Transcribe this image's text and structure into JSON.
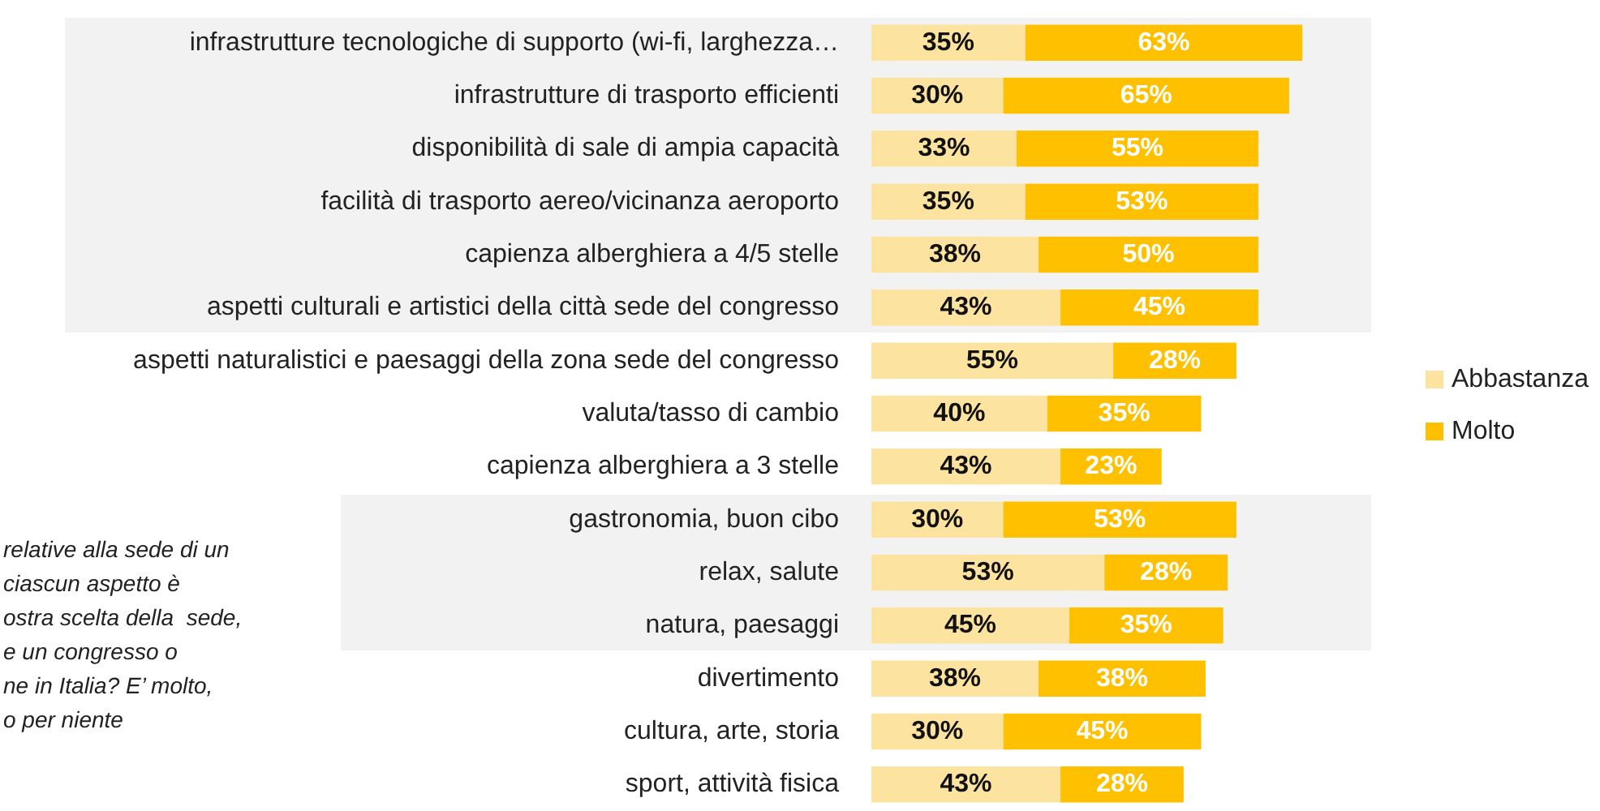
{
  "chart_data": {
    "type": "bar",
    "orientation": "horizontal",
    "stacked": true,
    "tick_labels": "y",
    "categories": [
      "infrastrutture tecnologiche di supporto (wi-fi, larghezza…",
      "infrastrutture di trasporto efficienti",
      "disponibilità di sale di ampia capacità",
      "facilità di trasporto aereo/vicinanza aeroporto",
      "capienza alberghiera a 4/5 stelle",
      "aspetti culturali e artistici della città sede del congresso",
      "aspetti naturalistici e paesaggi della zona sede del congresso",
      "valuta/tasso di cambio",
      "capienza alberghiera a 3 stelle",
      "gastronomia, buon cibo",
      "relax, salute",
      "natura, paesaggi",
      "divertimento",
      "cultura, arte, storia",
      "sport, attività fisica"
    ],
    "series": [
      {
        "name": "Abbastanza",
        "color": "#fde3a0",
        "values": [
          35,
          30,
          33,
          35,
          38,
          43,
          55,
          40,
          43,
          30,
          53,
          45,
          38,
          30,
          43
        ],
        "value_labels": [
          "35%",
          "30%",
          "33%",
          "35%",
          "38%",
          "43%",
          "55%",
          "40%",
          "43%",
          "30%",
          "53%",
          "45%",
          "38%",
          "30%",
          "43%"
        ]
      },
      {
        "name": "Molto",
        "color": "#ffc000",
        "values": [
          63,
          65,
          55,
          53,
          50,
          45,
          28,
          35,
          23,
          53,
          28,
          35,
          38,
          45,
          28
        ],
        "value_labels": [
          "63%",
          "65%",
          "55%",
          "53%",
          "50%",
          "45%",
          "28%",
          "35%",
          "23%",
          "53%",
          "28%",
          "35%",
          "38%",
          "45%",
          "28%"
        ]
      }
    ],
    "bands": [
      {
        "axis": "y",
        "from": "infrastrutture tecnologiche di supporto (wi-fi, larghezza…",
        "to": "aspetti culturali e artistici della città sede del congresso",
        "color": "#f2f2f2"
      },
      {
        "axis": "y",
        "from": "gastronomia, buon cibo",
        "to": "natura, paesaggi",
        "color": "#f2f2f2"
      }
    ],
    "legend": "right",
    "annotations": [
      "relative alla sede di un\nciascun aspetto è\nostra scelta della  sede,\ne un congresso o\nne in Italia? E’ molto,\no per niente"
    ]
  }
}
